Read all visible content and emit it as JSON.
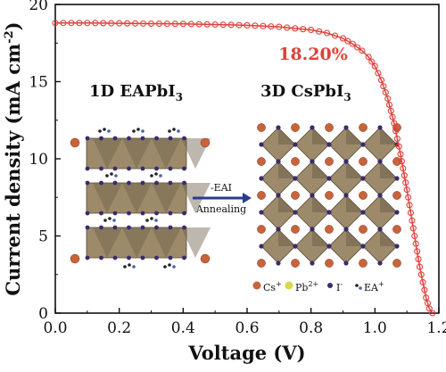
{
  "chart_data": {
    "type": "line",
    "title": "",
    "xlabel": "Voltage (V)",
    "ylabel_parts": [
      "Current density (mA cm",
      "-2",
      ")"
    ],
    "xlim": [
      0,
      1.2
    ],
    "ylim": [
      0,
      20
    ],
    "x_ticks": [
      "0.0",
      "0.2",
      "0.4",
      "0.6",
      "0.8",
      "1.0",
      "1.2"
    ],
    "y_ticks": [
      "0",
      "5",
      "10",
      "15",
      "20"
    ],
    "grid": false,
    "legend": "none",
    "series": [
      {
        "color": "#e0403b",
        "marker": "circle",
        "x": [
          0.0,
          0.1,
          0.2,
          0.3,
          0.4,
          0.5,
          0.6,
          0.7,
          0.8,
          0.85,
          0.9,
          0.93,
          0.96,
          0.98,
          1.0,
          1.02,
          1.04,
          1.06,
          1.08,
          1.1,
          1.12,
          1.14,
          1.16,
          1.17,
          1.18
        ],
        "y": [
          18.8,
          18.8,
          18.78,
          18.76,
          18.74,
          18.7,
          18.65,
          18.55,
          18.35,
          18.15,
          17.8,
          17.45,
          17.0,
          16.6,
          16.0,
          15.1,
          13.9,
          12.3,
          10.3,
          8.0,
          5.5,
          3.0,
          1.0,
          0.3,
          0.0
        ]
      }
    ],
    "annotations": {
      "efficiency": "18.20%",
      "inset_left_title": [
        "1D EAPbI",
        "3"
      ],
      "inset_right_title": [
        "3D CsPbI",
        "3"
      ],
      "arrow_top_label": "-EAI",
      "arrow_bottom_label": "Annealing",
      "legend_items": [
        {
          "label": "Cs",
          "sup": "+"
        },
        {
          "label": "Pb",
          "sup": "2+"
        },
        {
          "label": "I",
          "sup": "-"
        },
        {
          "label": "EA",
          "sup": "+"
        }
      ]
    }
  },
  "colors": {
    "curve": "#e0403b",
    "octahedron_face": "#9c8a6a",
    "octahedron_dark": "#6f604a",
    "cs_atom": "#c8633a",
    "pb_atom": "#d8d84a",
    "i_atom": "#3b2a6e",
    "arrow": "#2a3b8f"
  }
}
